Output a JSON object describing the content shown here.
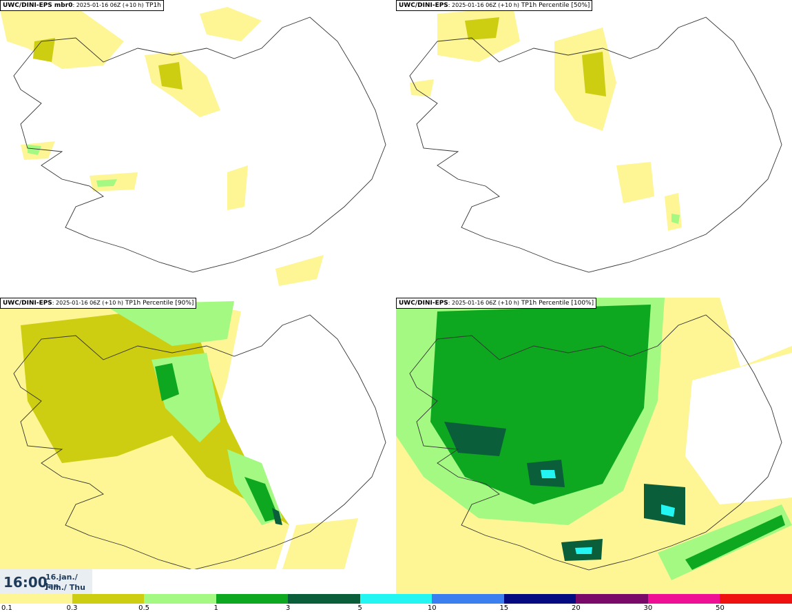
{
  "panels": [
    {
      "model": "UWC/DINI-EPS",
      "member": " mbr0",
      "run": ": 2025-01-16 06Z (+10 h)",
      "field": " TP1h"
    },
    {
      "model": "UWC/DINI-EPS",
      "member": "",
      "run": ": 2025-01-16 06Z (+10 h)",
      "field": " TP1h Percentile [50%]"
    },
    {
      "model": "UWC/DINI-EPS",
      "member": "",
      "run": ": 2025-01-16 06Z (+10 h)",
      "field": " TP1h Percentile [90%]"
    },
    {
      "model": "UWC/DINI-EPS",
      "member": "",
      "run": ": 2025-01-16 06Z (+10 h)",
      "field": " TP1h Percentile [100%]"
    }
  ],
  "time": {
    "hour": "16:00",
    "date": "16.jan./ Jan",
    "weekday": "Fim./ Thu"
  },
  "legend": {
    "colors": [
      "#fef595",
      "#cdcd12",
      "#a4f983",
      "#0ea720",
      "#0a5e3a",
      "#22f5f2",
      "#3b7ef0",
      "#040a80",
      "#7a0a6a",
      "#ee0f95",
      "#ef1010"
    ],
    "labels": [
      "0.1",
      "0.3",
      "0.5",
      "1",
      "3",
      "5",
      "10",
      "15",
      "20",
      "30",
      "50"
    ]
  }
}
